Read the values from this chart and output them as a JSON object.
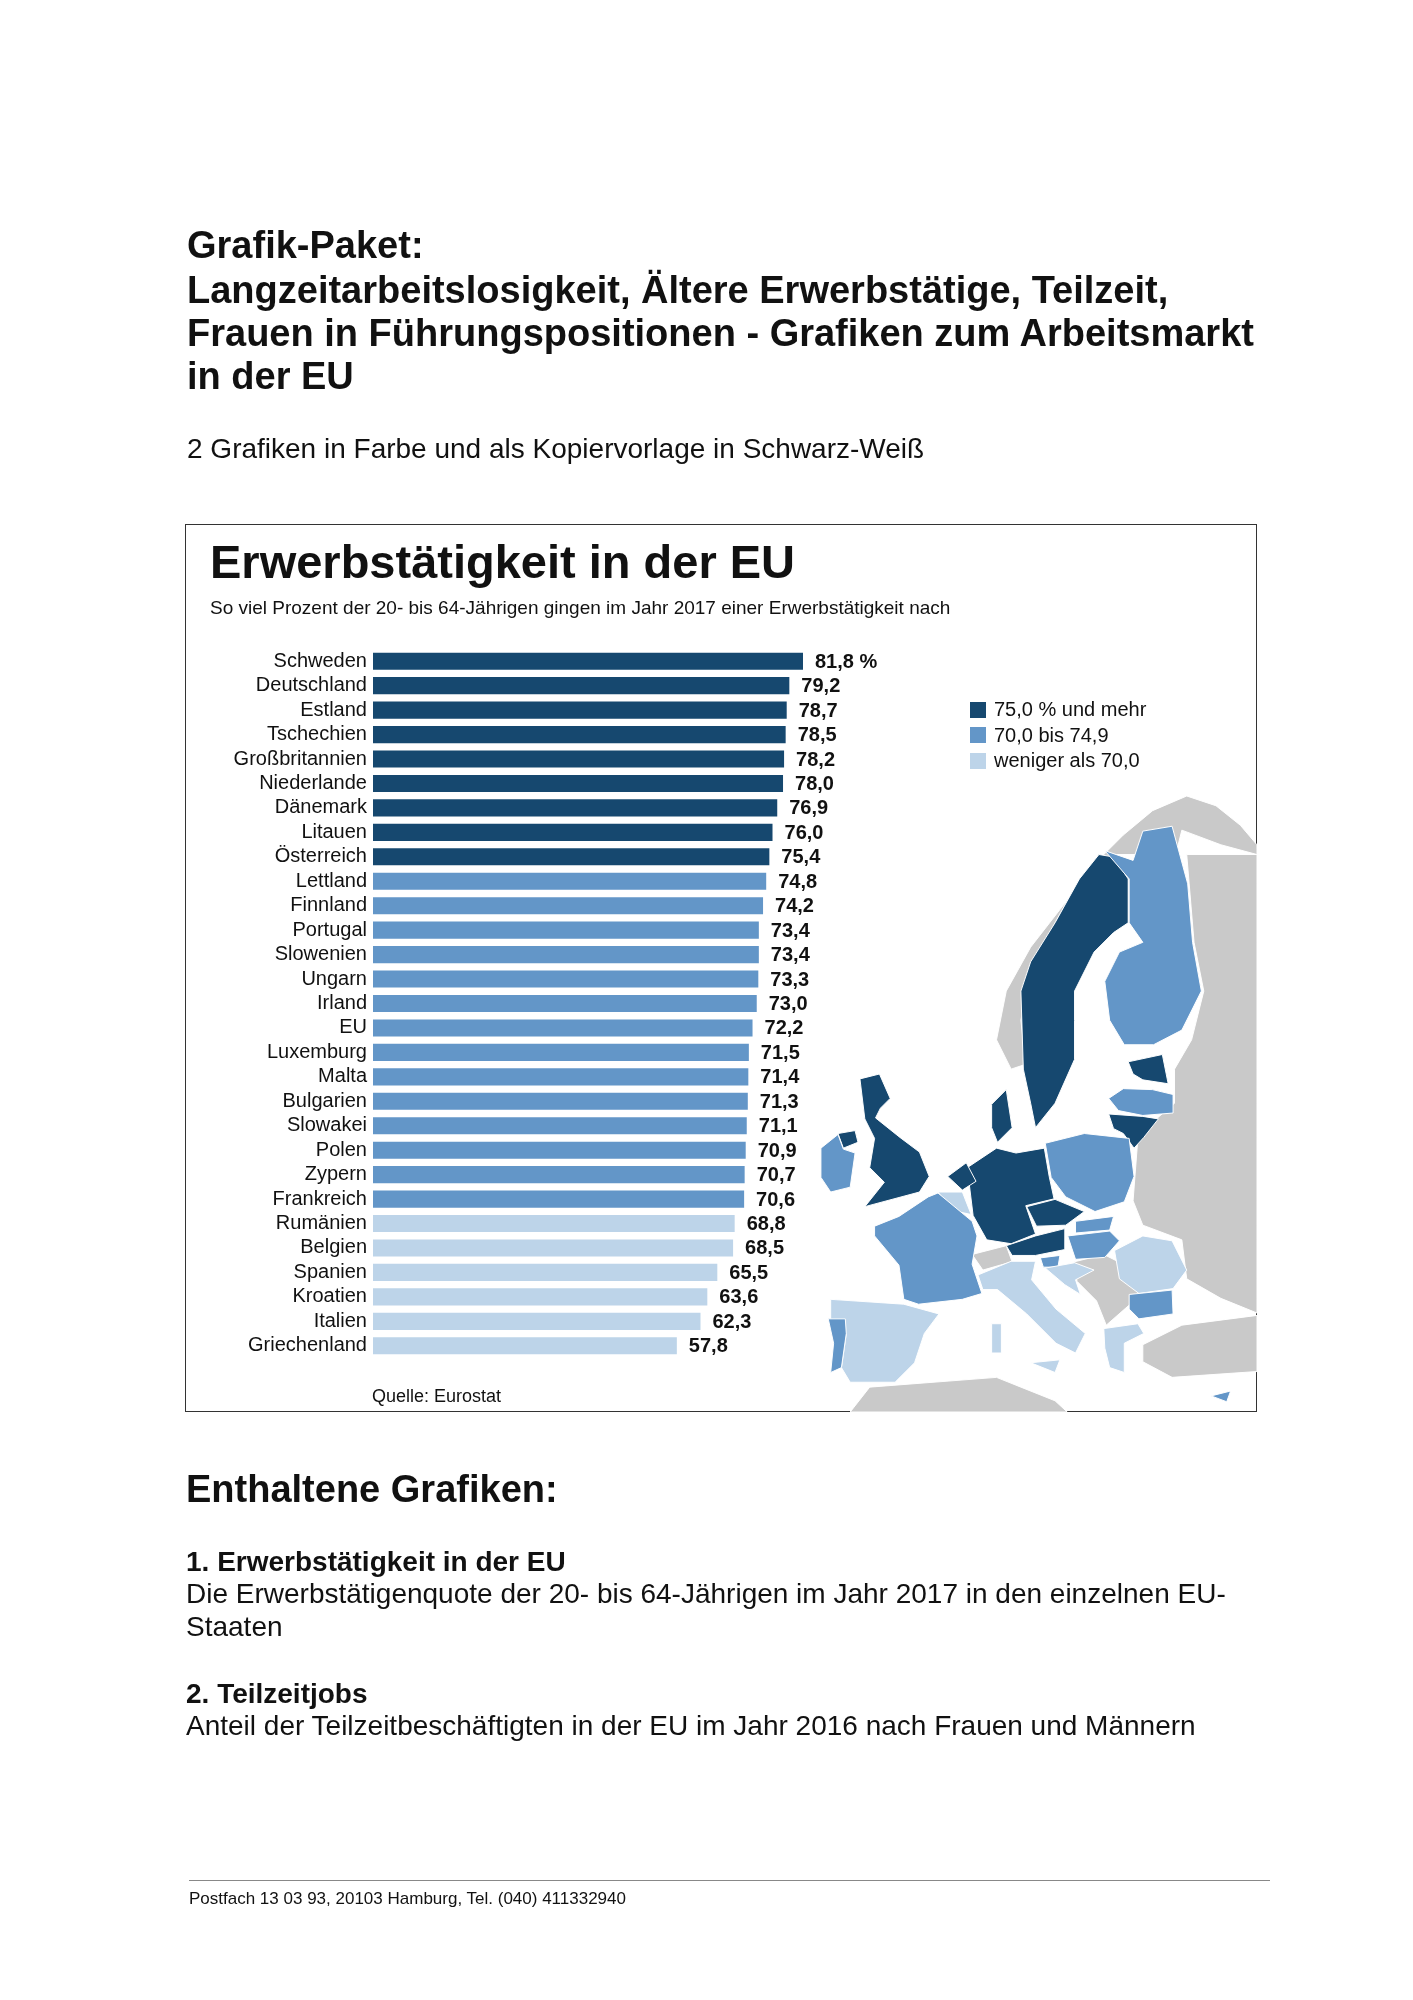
{
  "chart_data": {
    "type": "bar",
    "orientation": "horizontal",
    "stacked": true,
    "title": "Erwerbstätigkeit in der EU",
    "subtitle": "So viel Prozent der 20- bis 64-Jährigen gingen im Jahr 2017 einer Erwerbstätigkeit nach",
    "categories": [
      "Schweden",
      "Deutschland",
      "Estland",
      "Tschechien",
      "Großbritannien",
      "Niederlande",
      "Dänemark",
      "Litauen",
      "Österreich",
      "Lettland",
      "Finnland",
      "Portugal",
      "Slowenien",
      "Ungarn",
      "Irland",
      "EU",
      "Luxemburg",
      "Malta",
      "Bulgarien",
      "Slowakei",
      "Polen",
      "Zypern",
      "Frankreich",
      "Rumänien",
      "Belgien",
      "Spanien",
      "Kroatien",
      "Italien",
      "Griechenland"
    ],
    "series": [
      {
        "name": "75,0 % und mehr",
        "color": "#16486f",
        "values": [
          81.8,
          79.2,
          78.7,
          78.5,
          78.2,
          78.0,
          76.9,
          76.0,
          75.4,
          null,
          null,
          null,
          null,
          null,
          null,
          null,
          null,
          null,
          null,
          null,
          null,
          null,
          null,
          null,
          null,
          null,
          null,
          null,
          null
        ],
        "value_labels": [
          "81,8 %",
          "79,2",
          "78,7",
          "78,5",
          "78,2",
          "78,0",
          "76,9",
          "76,0",
          "75,4",
          null,
          null,
          null,
          null,
          null,
          null,
          null,
          null,
          null,
          null,
          null,
          null,
          null,
          null,
          null,
          null,
          null,
          null,
          null,
          null
        ]
      },
      {
        "name": "70,0 bis 74,9",
        "color": "#6396c8",
        "values": [
          null,
          null,
          null,
          null,
          null,
          null,
          null,
          null,
          null,
          74.8,
          74.2,
          73.4,
          73.4,
          73.3,
          73.0,
          72.2,
          71.5,
          71.4,
          71.3,
          71.1,
          70.9,
          70.7,
          70.6,
          null,
          null,
          null,
          null,
          null,
          null
        ],
        "value_labels": [
          null,
          null,
          null,
          null,
          null,
          null,
          null,
          null,
          null,
          "74,8",
          "74,2",
          "73,4",
          "73,4",
          "73,3",
          "73,0",
          "72,2",
          "71,5",
          "71,4",
          "71,3",
          "71,1",
          "70,9",
          "70,7",
          "70,6",
          null,
          null,
          null,
          null,
          null,
          null
        ]
      },
      {
        "name": "weniger als 70,0",
        "color": "#bdd4e9",
        "values": [
          null,
          null,
          null,
          null,
          null,
          null,
          null,
          null,
          null,
          null,
          null,
          null,
          null,
          null,
          null,
          null,
          null,
          null,
          null,
          null,
          null,
          null,
          null,
          68.8,
          68.5,
          65.5,
          63.6,
          62.3,
          57.8
        ],
        "value_labels": [
          null,
          null,
          null,
          null,
          null,
          null,
          null,
          null,
          null,
          null,
          null,
          null,
          null,
          null,
          null,
          null,
          null,
          null,
          null,
          null,
          null,
          null,
          null,
          "68,8",
          "68,5",
          "65,5",
          "63,6",
          "62,3",
          "57,8"
        ]
      }
    ],
    "legend": "top right",
    "tick_labels": "y",
    "annotations": [
      "Grafik-Paket:",
      "Langzeitarbeitslosigkeit, Ältere Erwerbstätige, Teilzeit, Frauen in Führungspositionen - Grafiken zum Arbeitsmarkt in der EU",
      "2 Grafiken in Farbe und als Kopiervorlage in Schwarz-Weiß",
      "Quelle: Eurostat",
      "Enthaltene Grafiken:",
      "1. Erwerbstätigkeit in der EU",
      "Die Erwerbstätigenquote der 20- bis 64-Jährigen im Jahr 2017 in den einzelnen EU-Staaten",
      "2. Teilzeitjobs",
      "Anteil der Teilzeitbeschäftigten in der EU im Jahr 2016 nach Frauen und Männern",
      "Postfach 13 03 93, 20103 Hamburg, Tel. (040) 411332940"
    ]
  }
}
